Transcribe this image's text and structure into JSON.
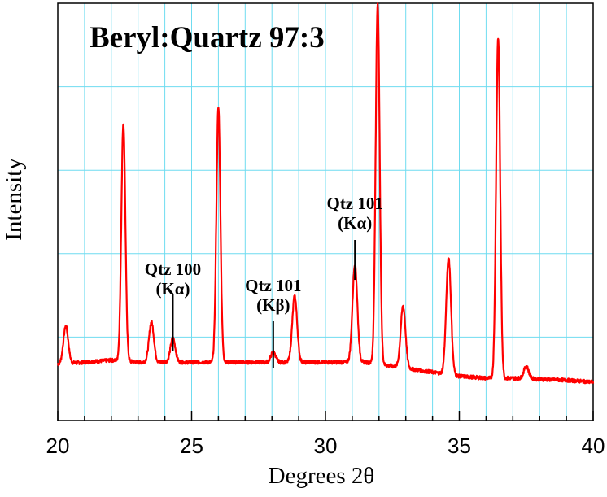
{
  "chart_data": {
    "type": "line",
    "title": "Beryl:Quartz 97:3",
    "xlabel": "Degrees 2θ",
    "ylabel": "Intensity",
    "xlim": [
      20,
      40
    ],
    "ylim": [
      0,
      100
    ],
    "xticks": [
      20,
      25,
      30,
      35,
      40
    ],
    "grid": true,
    "line_color": "#ff0000",
    "grid_color": "#6fdcf0",
    "baseline": {
      "x": [
        20.0,
        21.0,
        22.0,
        23.0,
        25.0,
        27.0,
        29.5,
        31.5,
        33.5,
        35.0,
        36.0,
        37.0,
        39.0,
        40.0
      ],
      "y": [
        10.0,
        10.5,
        11.0,
        10.5,
        10.5,
        10.5,
        10.5,
        10.5,
        8.5,
        7.0,
        6.5,
        6.5,
        6.0,
        5.5
      ]
    },
    "peaks": [
      {
        "x": 20.3,
        "y": 19.5
      },
      {
        "x": 22.45,
        "y": 70.0
      },
      {
        "x": 23.5,
        "y": 20.5
      },
      {
        "x": 24.3,
        "y": 16.5
      },
      {
        "x": 26.0,
        "y": 74.0
      },
      {
        "x": 28.05,
        "y": 13.0
      },
      {
        "x": 28.85,
        "y": 27.0
      },
      {
        "x": 31.1,
        "y": 35.0
      },
      {
        "x": 31.95,
        "y": 100.0
      },
      {
        "x": 32.9,
        "y": 24.5
      },
      {
        "x": 34.6,
        "y": 36.5
      },
      {
        "x": 36.45,
        "y": 91.5
      },
      {
        "x": 37.5,
        "y": 9.5
      }
    ],
    "annotations": [
      {
        "line1": "Qtz 100",
        "line2": "(Kα)",
        "x": 24.3
      },
      {
        "line1": "Qtz 101",
        "line2": "(Kβ)",
        "x": 28.05
      },
      {
        "line1": "Qtz 101",
        "line2": "(Kα)",
        "x": 31.1
      }
    ]
  }
}
